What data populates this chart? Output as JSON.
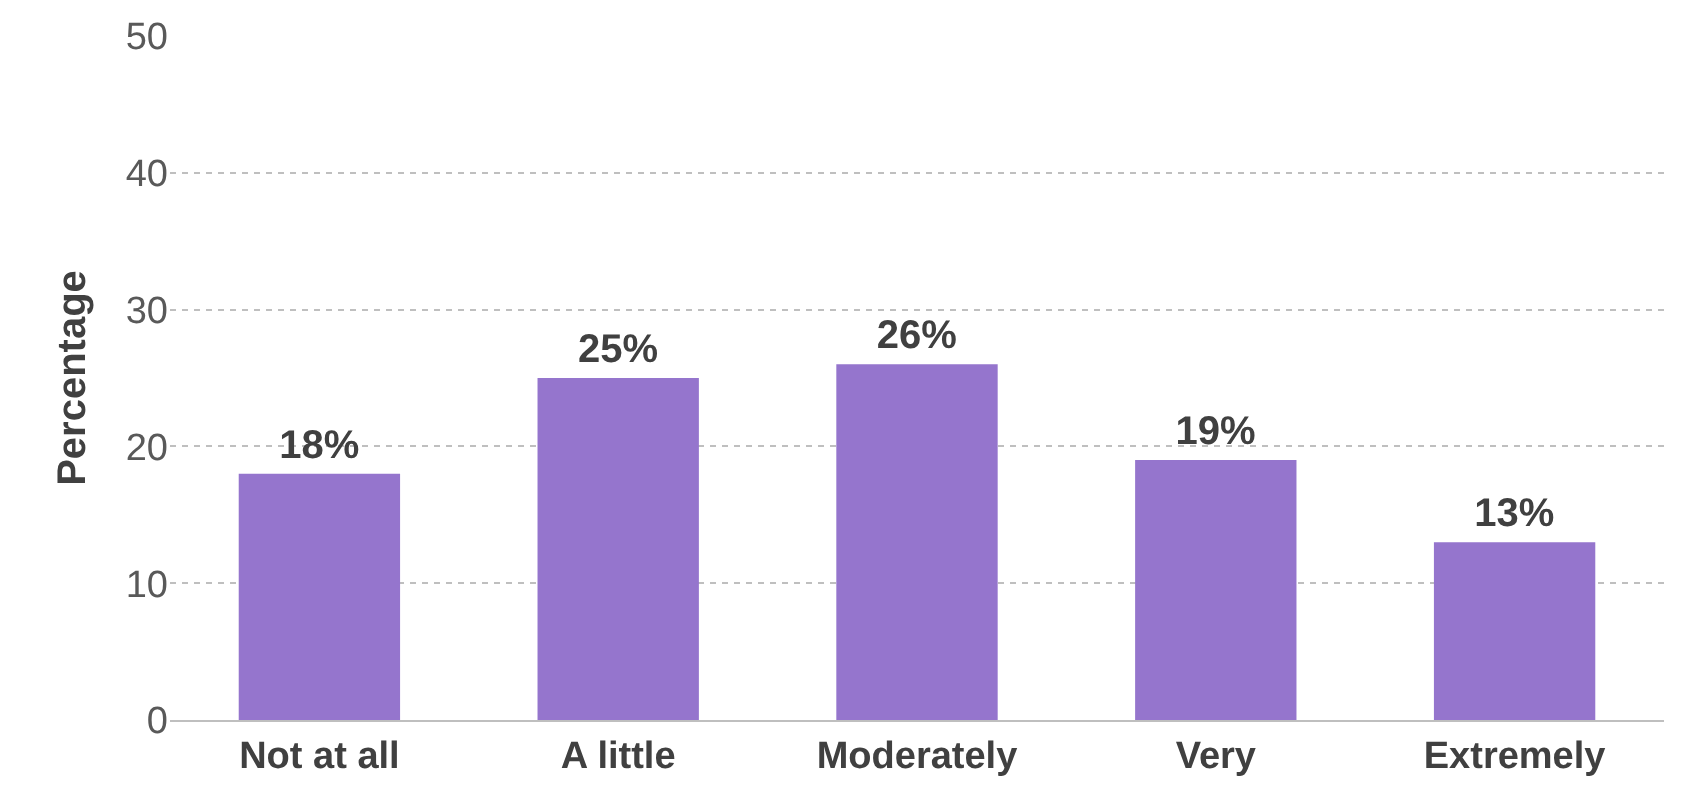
{
  "chart_data": {
    "type": "bar",
    "ylabel": "Percentage",
    "categories": [
      "Not at all",
      "A little",
      "Moderately",
      "Very",
      "Extremely"
    ],
    "values": [
      18,
      25,
      26,
      19,
      13
    ],
    "value_labels": [
      "18%",
      "25%",
      "26%",
      "19%",
      "13%"
    ],
    "color": "#9575cd",
    "ylim": [
      0,
      50
    ],
    "yticks": [
      0,
      10,
      20,
      30,
      40,
      50
    ],
    "grid": "y"
  }
}
